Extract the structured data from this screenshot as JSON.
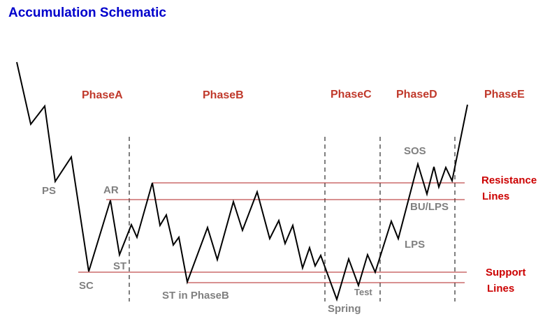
{
  "title": "Accumulation Schematic",
  "colors": {
    "title": "#0000cc",
    "phase": "#c0392b",
    "event": "#808080",
    "legend": "#cc0000",
    "price_line": "#000000",
    "level_line": "#b22222",
    "divider": "#555555"
  },
  "phases": [
    "PhaseA",
    "PhaseB",
    "PhaseC",
    "PhaseD",
    "PhaseE"
  ],
  "events": {
    "ps": "PS",
    "sc": "SC",
    "ar": "AR",
    "st": "ST",
    "st_phase_b": "ST in PhaseB",
    "spring": "Spring",
    "test": "Test",
    "lps": "LPS",
    "sos": "SOS",
    "bu_lps": "BU/LPS"
  },
  "legend": {
    "resistance_line1": "Resistance",
    "resistance_line2": "Lines",
    "support_line1": "Support",
    "support_line2": "Lines"
  }
}
